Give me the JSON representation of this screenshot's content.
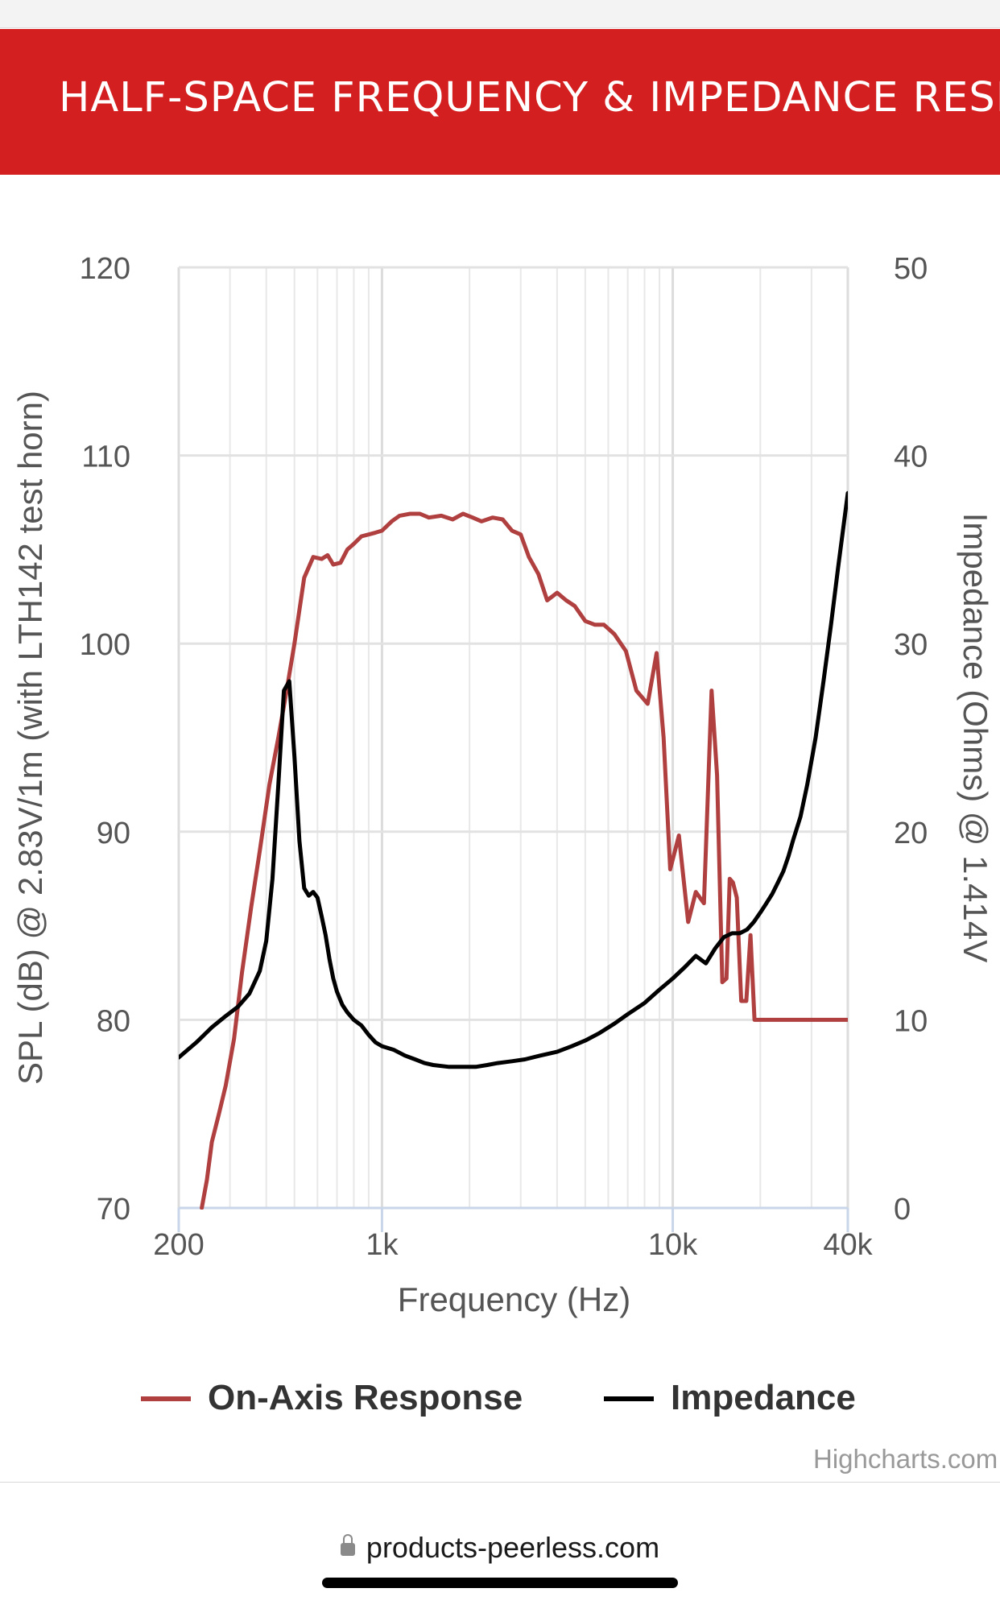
{
  "banner": {
    "title": "HALF-SPACE FREQUENCY & IMPEDANCE RESPO"
  },
  "credit": "Highcharts.com",
  "browser": {
    "url": "products-peerless.com"
  },
  "chart_data": {
    "type": "line",
    "xlabel": "Frequency (Hz)",
    "ylabel": "SPL (dB) @ 2.83V/1m (with LTH142 test horn)",
    "y2label": "Impedance (Ohms) @ 1.414V",
    "x_scale": "log",
    "xlim": [
      200,
      40000
    ],
    "ylim": [
      70,
      120
    ],
    "y2lim": [
      0,
      50
    ],
    "x_ticks": [
      200,
      1000,
      10000,
      40000
    ],
    "x_tick_labels": [
      "200",
      "1k",
      "10k",
      "40k"
    ],
    "y_ticks": [
      70,
      80,
      90,
      100,
      110,
      120
    ],
    "y_tick_labels": [
      "70",
      "80",
      "90",
      "100",
      "110",
      "120"
    ],
    "y2_ticks": [
      0,
      10,
      20,
      30,
      40,
      50
    ],
    "y2_tick_labels": [
      "0",
      "10",
      "20",
      "30",
      "40",
      "50"
    ],
    "grid": true,
    "legend_position": "bottom-center",
    "series": [
      {
        "name": "On-Axis Response",
        "axis": "left",
        "color": "#b04040",
        "x": [
          240,
          250,
          260,
          275,
          290,
          310,
          330,
          355,
          380,
          410,
          440,
          470,
          500,
          540,
          580,
          620,
          650,
          680,
          720,
          760,
          800,
          850,
          900,
          950,
          1000,
          1080,
          1150,
          1250,
          1350,
          1450,
          1600,
          1750,
          1900,
          2050,
          2200,
          2400,
          2600,
          2800,
          3000,
          3200,
          3450,
          3700,
          4000,
          4300,
          4600,
          5000,
          5400,
          5800,
          6300,
          6900,
          7500,
          8200,
          8800,
          9300,
          9800,
          10500,
          11300,
          12000,
          12800,
          13600,
          14200,
          14800,
          15300,
          15700,
          16100,
          16600,
          17200,
          17900,
          18500,
          19100,
          19700,
          20400,
          21100,
          21700,
          22400,
          23000,
          23800,
          24600,
          25600,
          26800,
          28400,
          30300,
          32000,
          33700,
          35500,
          37500,
          40000
        ],
        "y": [
          70,
          71.5,
          73.5,
          75,
          76.5,
          79,
          82.5,
          86,
          89,
          92.5,
          95,
          97.5,
          100,
          103.5,
          104.6,
          104.5,
          104.7,
          104.2,
          104.3,
          105.0,
          105.3,
          105.7,
          105.8,
          105.9,
          106.0,
          106.5,
          106.8,
          106.9,
          106.9,
          106.7,
          106.8,
          106.6,
          106.9,
          106.7,
          106.5,
          106.7,
          106.6,
          106.0,
          105.8,
          104.6,
          103.7,
          102.3,
          102.7,
          102.3,
          102.0,
          101.2,
          101.0,
          101.0,
          100.5,
          99.6,
          97.5,
          96.8,
          99.5,
          95.0,
          88.0,
          89.8,
          85.2,
          86.8,
          86.2,
          97.5,
          93.0,
          82.0,
          82.2,
          87.5,
          87.3,
          86.5,
          81.0,
          81.0,
          84.5,
          80,
          80,
          80,
          80,
          80,
          80,
          80,
          80,
          80,
          80,
          80,
          80,
          80,
          80,
          80,
          80,
          80,
          80
        ]
      },
      {
        "name": "Impedance",
        "axis": "right",
        "color": "#000000",
        "x": [
          200,
          230,
          260,
          290,
          320,
          350,
          380,
          400,
          420,
          440,
          460,
          480,
          500,
          520,
          540,
          560,
          580,
          600,
          620,
          640,
          660,
          680,
          700,
          730,
          760,
          800,
          850,
          900,
          950,
          1000,
          1100,
          1200,
          1300,
          1400,
          1500,
          1700,
          1900,
          2100,
          2300,
          2500,
          2800,
          3100,
          3500,
          4000,
          4500,
          5000,
          5600,
          6300,
          7000,
          8000,
          9000,
          10000,
          11000,
          12000,
          13000,
          14000,
          15000,
          16000,
          17000,
          18000,
          19000,
          20000,
          21000,
          22000,
          23000,
          24000,
          25000,
          26000,
          27500,
          29000,
          31000,
          33000,
          35000,
          37000,
          40000
        ],
        "y": [
          8.0,
          8.8,
          9.6,
          10.2,
          10.7,
          11.4,
          12.6,
          14.2,
          17.5,
          22.5,
          27.5,
          28.0,
          24.0,
          19.5,
          17.0,
          16.6,
          16.8,
          16.5,
          15.5,
          14.5,
          13.2,
          12.2,
          11.5,
          10.8,
          10.4,
          10.0,
          9.7,
          9.2,
          8.8,
          8.6,
          8.4,
          8.1,
          7.9,
          7.7,
          7.6,
          7.5,
          7.5,
          7.5,
          7.6,
          7.7,
          7.8,
          7.9,
          8.1,
          8.3,
          8.6,
          8.9,
          9.3,
          9.8,
          10.3,
          10.9,
          11.6,
          12.2,
          12.8,
          13.4,
          13.0,
          13.8,
          14.4,
          14.6,
          14.6,
          14.8,
          15.2,
          15.7,
          16.2,
          16.7,
          17.3,
          17.9,
          18.7,
          19.6,
          20.8,
          22.5,
          25.0,
          28.0,
          31.0,
          34.0,
          38.0
        ]
      }
    ]
  }
}
